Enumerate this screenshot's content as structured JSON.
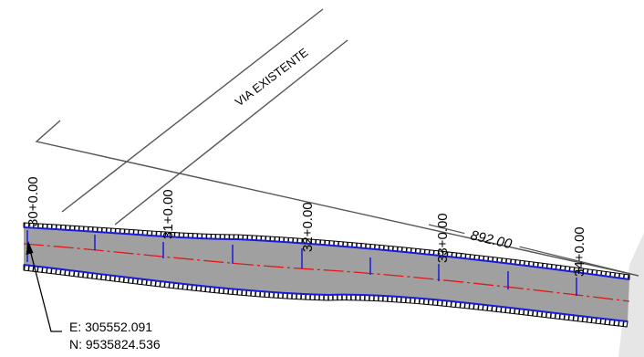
{
  "road_label": "VIA EXISTENTE",
  "stations": [
    "30+0.00",
    "31+0.00",
    "32+0.00",
    "33+0.00",
    "34+0.00"
  ],
  "dimension": "892.00",
  "coordinates": {
    "east": "E: 305552.091",
    "north": "N: 9535824.536"
  },
  "colors": {
    "pavement": "#a0a0a0",
    "edge_lines": "#1a1adb",
    "centerline": "#e01818",
    "linework": "#555555",
    "text": "#000000"
  }
}
